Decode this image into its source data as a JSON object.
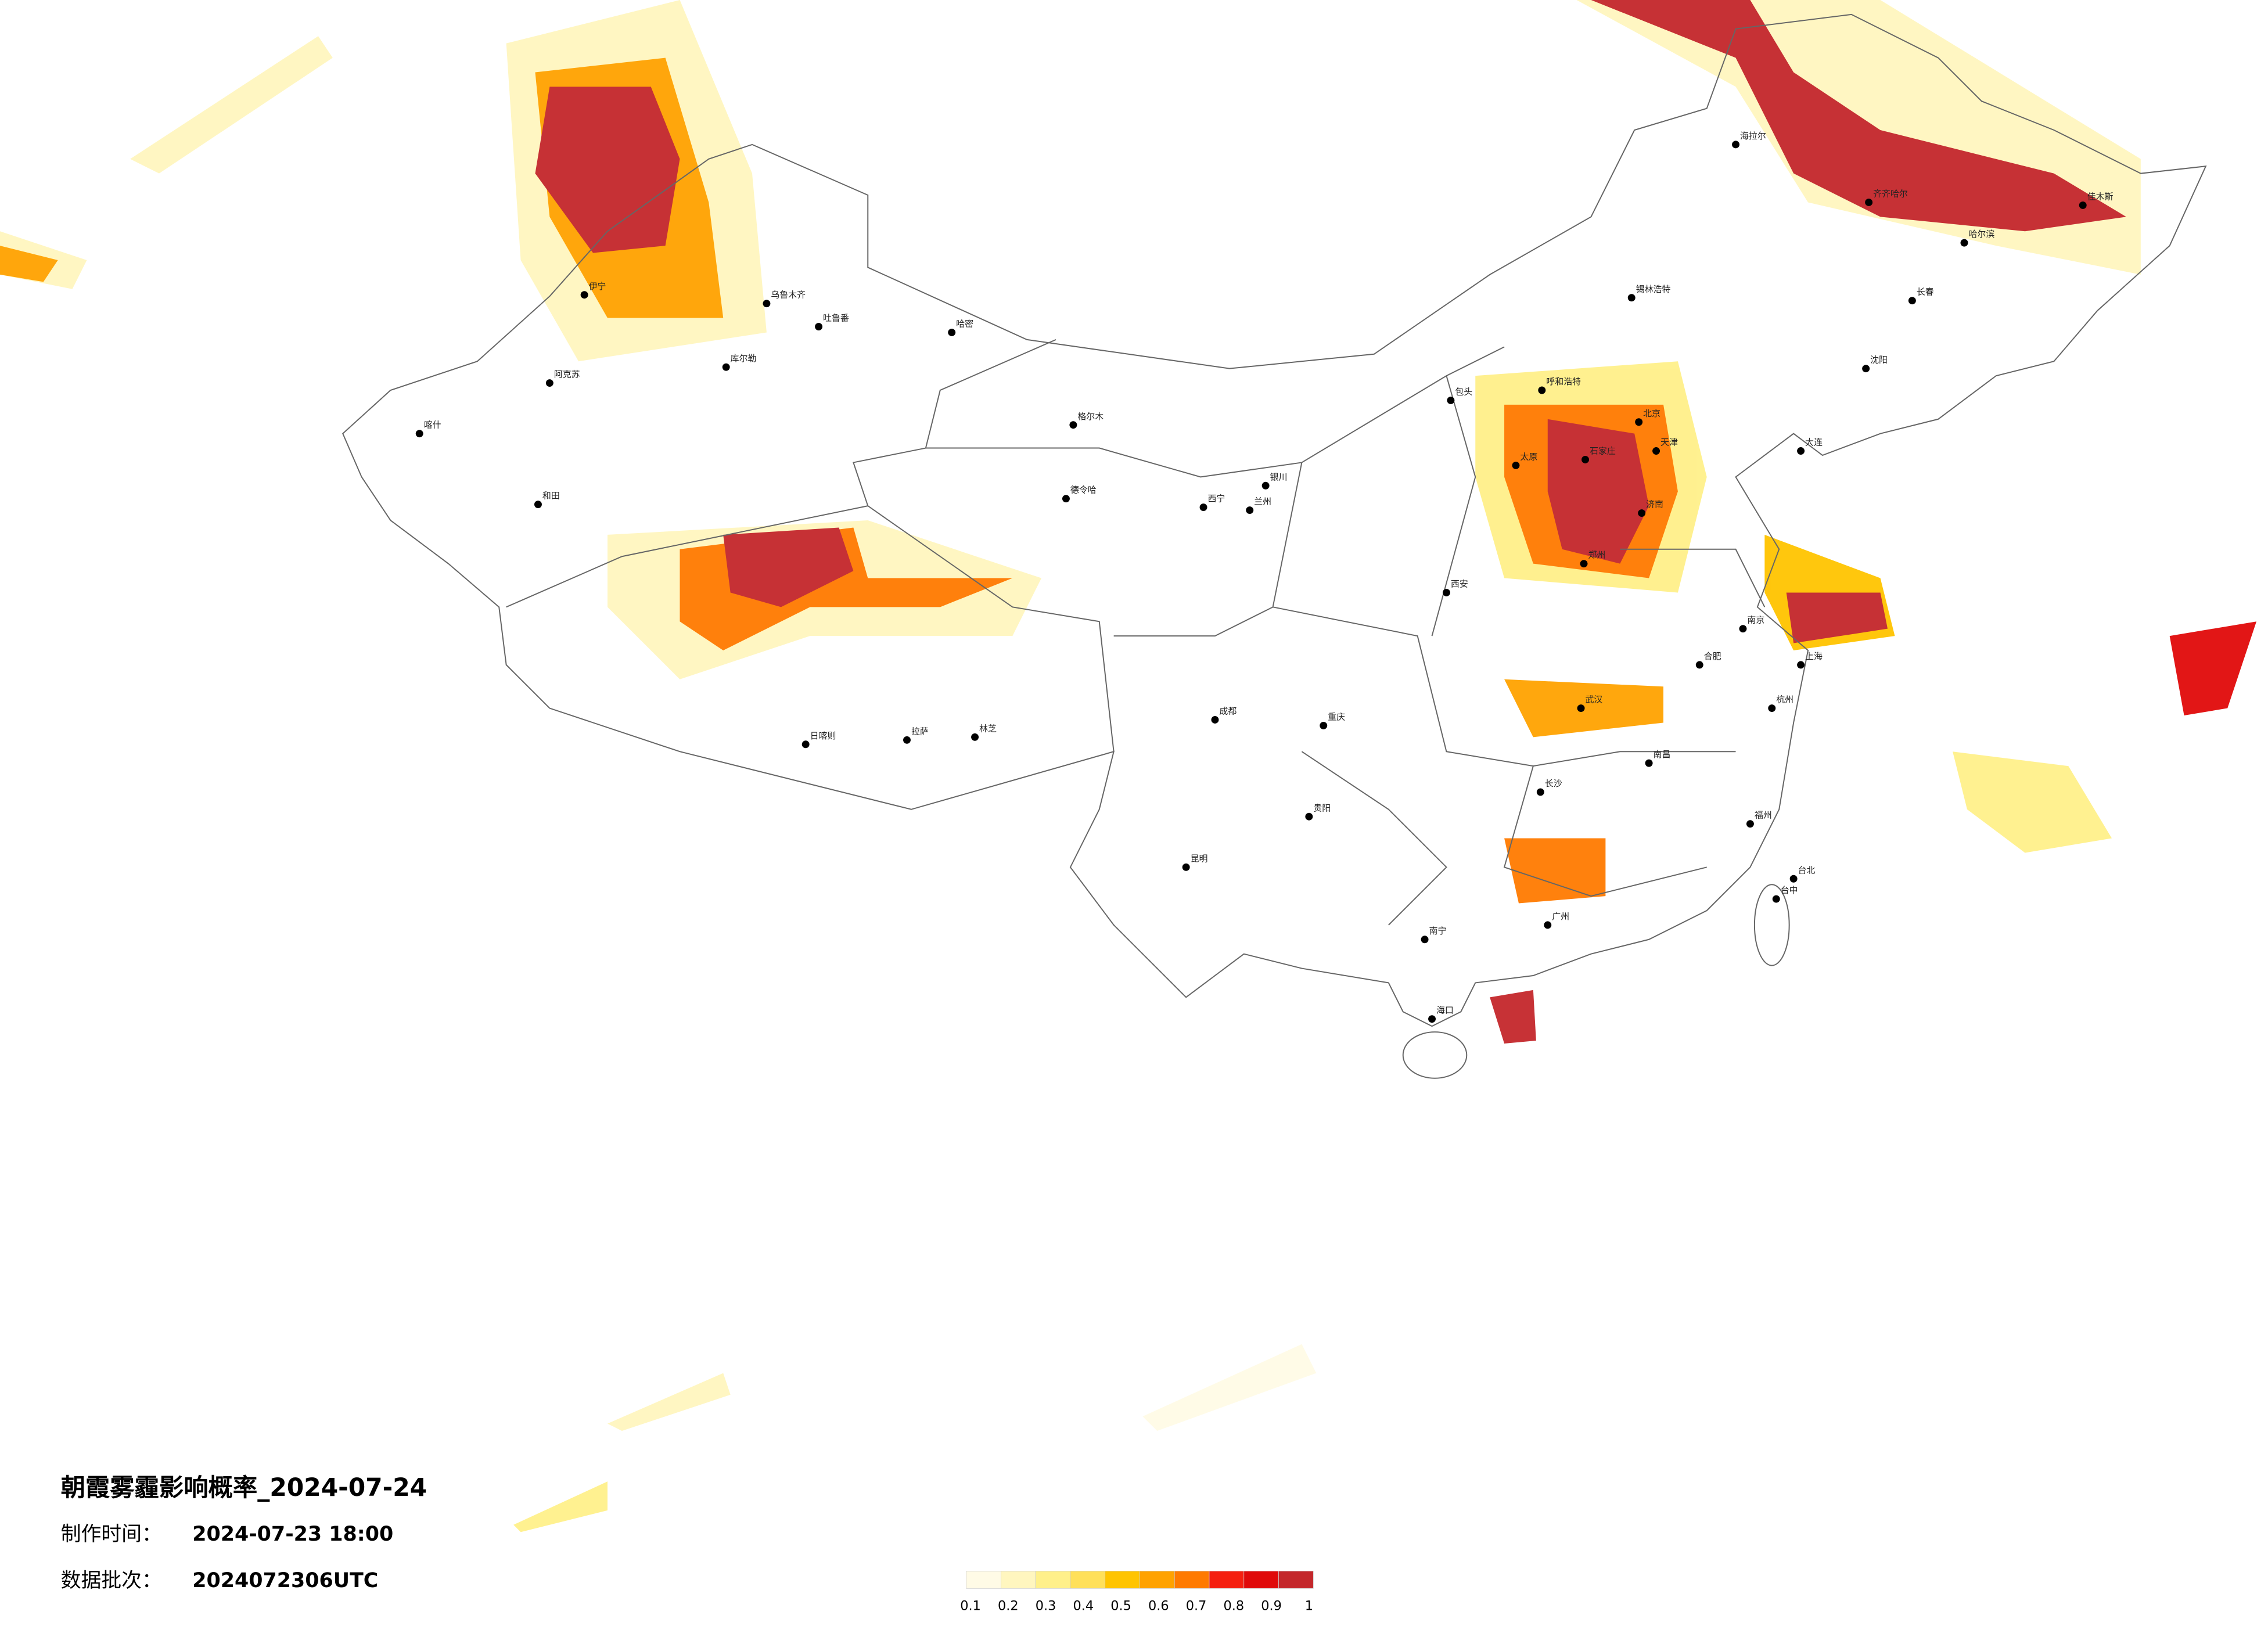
{
  "header": {
    "title": "朝霞雾霾影响概率_2024-07-24",
    "made_label": "制作时间：",
    "made_value": "2024-07-23 18:00",
    "batch_label": "数据批次：",
    "batch_value": "2024072306UTC"
  },
  "legend": {
    "ticks": [
      0.1,
      0.2,
      0.3,
      0.4,
      0.5,
      0.6,
      0.7,
      0.8,
      0.9,
      1
    ],
    "colors": [
      "#fffbe6",
      "#fff6bf",
      "#fff08a",
      "#ffe05a",
      "#ffc400",
      "#ffa200",
      "#ff7a00",
      "#f51f0f",
      "#e00a0a",
      "#c4272b"
    ]
  },
  "cities": [
    "伊宁",
    "乌鲁木齐",
    "吐鲁番",
    "哈密",
    "库尔勒",
    "阿克苏",
    "喀什",
    "和田",
    "格尔木",
    "德令哈",
    "西宁",
    "兰州",
    "银川",
    "呼和浩特",
    "包头",
    "北京",
    "天津",
    "石家庄",
    "太原",
    "郑州",
    "济南",
    "西安",
    "成都",
    "重庆",
    "贵阳",
    "昆明",
    "拉萨",
    "日喀则",
    "林芝",
    "武汉",
    "长沙",
    "南昌",
    "合肥",
    "南京",
    "上海",
    "杭州",
    "福州",
    "广州",
    "南宁",
    "海口",
    "长春",
    "哈尔滨",
    "沈阳",
    "大连",
    "台北",
    "台中",
    "海拉尔",
    "齐齐哈尔",
    "佳木斯",
    "锡林浩特"
  ]
}
